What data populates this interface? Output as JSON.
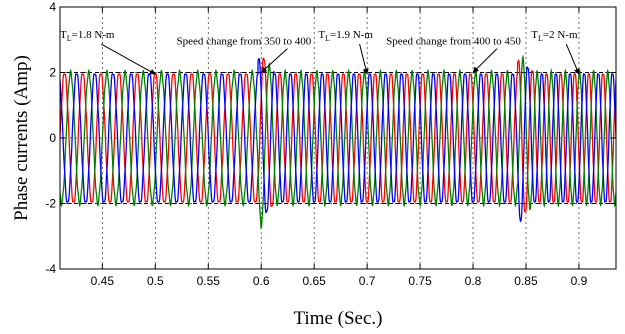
{
  "chart_data": {
    "type": "line",
    "title": "",
    "xlabel": "Time (Sec.)",
    "ylabel": "Phase currents (Amp)",
    "xlim": [
      0.41,
      0.935
    ],
    "ylim": [
      -4,
      4
    ],
    "x_ticks": [
      0.45,
      0.5,
      0.55,
      0.6,
      0.65,
      0.7,
      0.75,
      0.8,
      0.85,
      0.9
    ],
    "y_ticks": [
      -4,
      -2,
      0,
      2,
      4
    ],
    "x_tick_labels": [
      "0.45",
      "0.5",
      "0.55",
      "0.6",
      "0.65",
      "0.7",
      "0.75",
      "0.8",
      "0.85",
      "0.9"
    ],
    "y_tick_labels": [
      "-4",
      "-2",
      "0",
      "2",
      "4"
    ],
    "grid": true,
    "grid_style": "dotted",
    "series": [
      {
        "color": "#ff0000",
        "phase_deg": 0
      },
      {
        "color": "#008000",
        "phase_deg": 120
      },
      {
        "color": "#0000ff",
        "phase_deg": 240
      }
    ],
    "amplitude": 2.0,
    "segments": [
      {
        "t_start": 0.41,
        "t_end": 0.6,
        "frequency_hz": 58.3
      },
      {
        "t_start": 0.6,
        "t_end": 0.845,
        "frequency_hz": 66.7
      },
      {
        "t_start": 0.845,
        "t_end": 0.935,
        "frequency_hz": 75.0
      }
    ],
    "reference_lines": [
      {
        "axis": "y",
        "value": 2,
        "style": "dashed"
      },
      {
        "axis": "y",
        "value": -2,
        "style": "dashed"
      }
    ],
    "annotations": [
      {
        "text_main": "T",
        "text_sub": "L",
        "text_rest": "=1.8 N-m",
        "label_x": 0.41,
        "label_y": 3.05,
        "arrow_x": 0.5,
        "arrow_y": 1.95
      },
      {
        "text_main": "Speed change from 350 to 400",
        "text_sub": "",
        "text_rest": "",
        "label_x": 0.52,
        "label_y": 2.85,
        "arrow_x": 0.6,
        "arrow_y": 2.0
      },
      {
        "text_main": "T",
        "text_sub": "L",
        "text_rest": "=1.9 N-m",
        "label_x": 0.654,
        "label_y": 3.05,
        "arrow_x": 0.7,
        "arrow_y": 1.95
      },
      {
        "text_main": "Speed change from 400 to 450",
        "text_sub": "",
        "text_rest": "",
        "label_x": 0.718,
        "label_y": 2.85,
        "arrow_x": 0.8,
        "arrow_y": 2.0
      },
      {
        "text_main": "T",
        "text_sub": "L",
        "text_rest": "=2 N-m",
        "label_x": 0.855,
        "label_y": 3.05,
        "arrow_x": 0.9,
        "arrow_y": 1.95
      }
    ]
  }
}
